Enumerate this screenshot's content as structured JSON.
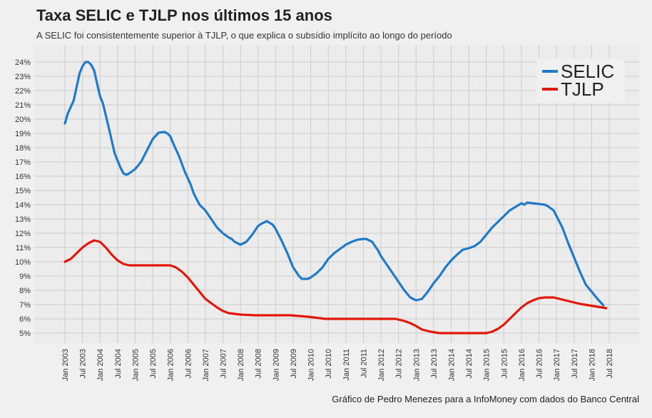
{
  "chart_data": {
    "type": "line",
    "title": "Taxa SELIC e TJLP nos últimos 15 anos",
    "subtitle": "A SELIC foi consistentemente superior à TJLP, o que explica o subsídio implícito ao longo do período",
    "caption": "Gráfico de Pedro Menezes para a InfoMoney com dados do Banco Central",
    "xlabel": "",
    "ylabel": "",
    "ylim": [
      4.3,
      25.2
    ],
    "grid": true,
    "legend_position": "top-right",
    "y_ticks": [
      "5%",
      "6%",
      "7%",
      "8%",
      "9%",
      "10%",
      "11%",
      "12%",
      "13%",
      "14%",
      "15%",
      "16%",
      "17%",
      "18%",
      "19%",
      "20%",
      "21%",
      "22%",
      "23%",
      "24%"
    ],
    "x_ticks": [
      "Jan 2003",
      "Jul 2003",
      "Jan 2004",
      "Jul 2004",
      "Jan 2005",
      "Jul 2005",
      "Jan 2006",
      "Jul 2006",
      "Jan 2007",
      "Jul 2007",
      "Jan 2008",
      "Jul 2008",
      "Jan 2009",
      "Jul 2009",
      "Jan 2010",
      "Jul 2010",
      "Jan 2011",
      "Jul 2011",
      "Jan 2012",
      "Jul 2012",
      "Jan 2013",
      "Jul 2013",
      "Jan 2014",
      "Jul 2014",
      "Jan 2015",
      "Jul 2015",
      "Jan 2016",
      "Jul 2016",
      "Jan 2017",
      "Jul 2017",
      "Jan 2018",
      "Jul 2018"
    ],
    "series": [
      {
        "name": "SELIC",
        "color": "#1f7bc7",
        "points": [
          [
            "2003-01",
            19.7
          ],
          [
            "2003-02",
            20.4
          ],
          [
            "2003-04",
            21.3
          ],
          [
            "2003-06",
            23.2
          ],
          [
            "2003-07",
            23.7
          ],
          [
            "2003-08",
            24.0
          ],
          [
            "2003-09",
            24.0
          ],
          [
            "2003-10",
            23.8
          ],
          [
            "2003-11",
            23.4
          ],
          [
            "2003-12",
            22.5
          ],
          [
            "2004-01",
            21.6
          ],
          [
            "2004-02",
            21.1
          ],
          [
            "2004-04",
            19.4
          ],
          [
            "2004-06",
            17.6
          ],
          [
            "2004-08",
            16.6
          ],
          [
            "2004-09",
            16.2
          ],
          [
            "2004-10",
            16.1
          ],
          [
            "2004-11",
            16.2
          ],
          [
            "2005-01",
            16.5
          ],
          [
            "2005-03",
            17.0
          ],
          [
            "2005-05",
            17.8
          ],
          [
            "2005-07",
            18.6
          ],
          [
            "2005-09",
            19.05
          ],
          [
            "2005-10",
            19.08
          ],
          [
            "2005-11",
            19.1
          ],
          [
            "2005-12",
            19.0
          ],
          [
            "2006-01",
            18.8
          ],
          [
            "2006-02",
            18.3
          ],
          [
            "2006-04",
            17.4
          ],
          [
            "2006-06",
            16.3
          ],
          [
            "2006-08",
            15.4
          ],
          [
            "2006-09",
            14.8
          ],
          [
            "2006-11",
            14.0
          ],
          [
            "2007-01",
            13.6
          ],
          [
            "2007-03",
            13.0
          ],
          [
            "2007-05",
            12.4
          ],
          [
            "2007-07",
            12.0
          ],
          [
            "2007-09",
            11.7
          ],
          [
            "2007-10",
            11.6
          ],
          [
            "2007-11",
            11.4
          ],
          [
            "2008-01",
            11.2
          ],
          [
            "2008-03",
            11.4
          ],
          [
            "2008-05",
            11.9
          ],
          [
            "2008-07",
            12.5
          ],
          [
            "2008-08",
            12.65
          ],
          [
            "2008-10",
            12.85
          ],
          [
            "2008-12",
            12.6
          ],
          [
            "2009-01",
            12.3
          ],
          [
            "2009-03",
            11.5
          ],
          [
            "2009-05",
            10.6
          ],
          [
            "2009-07",
            9.6
          ],
          [
            "2009-09",
            9.0
          ],
          [
            "2009-10",
            8.8
          ],
          [
            "2009-12",
            8.8
          ],
          [
            "2010-01",
            8.9
          ],
          [
            "2010-03",
            9.2
          ],
          [
            "2010-05",
            9.6
          ],
          [
            "2010-07",
            10.2
          ],
          [
            "2010-09",
            10.6
          ],
          [
            "2010-11",
            10.9
          ],
          [
            "2011-01",
            11.2
          ],
          [
            "2011-03",
            11.4
          ],
          [
            "2011-05",
            11.55
          ],
          [
            "2011-07",
            11.6
          ],
          [
            "2011-08",
            11.6
          ],
          [
            "2011-10",
            11.4
          ],
          [
            "2011-12",
            10.8
          ],
          [
            "2012-01",
            10.4
          ],
          [
            "2012-03",
            9.8
          ],
          [
            "2012-05",
            9.2
          ],
          [
            "2012-07",
            8.6
          ],
          [
            "2012-09",
            8.0
          ],
          [
            "2012-11",
            7.5
          ],
          [
            "2013-01",
            7.3
          ],
          [
            "2013-03",
            7.4
          ],
          [
            "2013-05",
            7.9
          ],
          [
            "2013-07",
            8.5
          ],
          [
            "2013-09",
            9.0
          ],
          [
            "2013-11",
            9.6
          ],
          [
            "2014-01",
            10.1
          ],
          [
            "2014-03",
            10.5
          ],
          [
            "2014-05",
            10.85
          ],
          [
            "2014-07",
            10.95
          ],
          [
            "2014-09",
            11.1
          ],
          [
            "2014-11",
            11.4
          ],
          [
            "2015-01",
            11.9
          ],
          [
            "2015-03",
            12.4
          ],
          [
            "2015-05",
            12.8
          ],
          [
            "2015-07",
            13.2
          ],
          [
            "2015-09",
            13.6
          ],
          [
            "2015-11",
            13.85
          ],
          [
            "2016-01",
            14.1
          ],
          [
            "2016-02",
            14.0
          ],
          [
            "2016-03",
            14.15
          ],
          [
            "2016-05",
            14.1
          ],
          [
            "2016-07",
            14.05
          ],
          [
            "2016-09",
            14.0
          ],
          [
            "2016-10",
            13.9
          ],
          [
            "2016-12",
            13.6
          ],
          [
            "2017-01",
            13.2
          ],
          [
            "2017-03",
            12.4
          ],
          [
            "2017-05",
            11.3
          ],
          [
            "2017-07",
            10.3
          ],
          [
            "2017-09",
            9.3
          ],
          [
            "2017-11",
            8.4
          ],
          [
            "2018-01",
            7.9
          ],
          [
            "2018-03",
            7.4
          ],
          [
            "2018-05",
            6.95
          ]
        ]
      },
      {
        "name": "TJLP",
        "color": "#e3170a",
        "points": [
          [
            "2003-01",
            10.0
          ],
          [
            "2003-03",
            10.2
          ],
          [
            "2003-05",
            10.6
          ],
          [
            "2003-07",
            11.0
          ],
          [
            "2003-09",
            11.3
          ],
          [
            "2003-11",
            11.5
          ],
          [
            "2004-01",
            11.4
          ],
          [
            "2004-03",
            11.0
          ],
          [
            "2004-05",
            10.5
          ],
          [
            "2004-07",
            10.1
          ],
          [
            "2004-09",
            9.85
          ],
          [
            "2004-11",
            9.75
          ],
          [
            "2005-01",
            9.75
          ],
          [
            "2006-01",
            9.75
          ],
          [
            "2006-03",
            9.6
          ],
          [
            "2006-05",
            9.3
          ],
          [
            "2006-07",
            8.9
          ],
          [
            "2006-09",
            8.4
          ],
          [
            "2006-11",
            7.9
          ],
          [
            "2007-01",
            7.4
          ],
          [
            "2007-03",
            7.1
          ],
          [
            "2007-05",
            6.8
          ],
          [
            "2007-07",
            6.55
          ],
          [
            "2007-09",
            6.4
          ],
          [
            "2007-11",
            6.35
          ],
          [
            "2008-01",
            6.3
          ],
          [
            "2008-06",
            6.25
          ],
          [
            "2009-06",
            6.25
          ],
          [
            "2009-12",
            6.15
          ],
          [
            "2010-06",
            6.0
          ],
          [
            "2012-01",
            6.0
          ],
          [
            "2012-06",
            6.0
          ],
          [
            "2012-09",
            5.85
          ],
          [
            "2012-11",
            5.7
          ],
          [
            "2013-01",
            5.5
          ],
          [
            "2013-03",
            5.25
          ],
          [
            "2013-06",
            5.1
          ],
          [
            "2013-09",
            5.0
          ],
          [
            "2015-01",
            5.0
          ],
          [
            "2015-03",
            5.1
          ],
          [
            "2015-05",
            5.3
          ],
          [
            "2015-07",
            5.6
          ],
          [
            "2015-09",
            6.0
          ],
          [
            "2015-11",
            6.4
          ],
          [
            "2016-01",
            6.8
          ],
          [
            "2016-03",
            7.1
          ],
          [
            "2016-05",
            7.3
          ],
          [
            "2016-07",
            7.45
          ],
          [
            "2016-09",
            7.5
          ],
          [
            "2016-12",
            7.5
          ],
          [
            "2017-03",
            7.35
          ],
          [
            "2017-06",
            7.2
          ],
          [
            "2017-09",
            7.05
          ],
          [
            "2017-12",
            6.95
          ],
          [
            "2018-03",
            6.85
          ],
          [
            "2018-06",
            6.75
          ]
        ]
      }
    ]
  }
}
